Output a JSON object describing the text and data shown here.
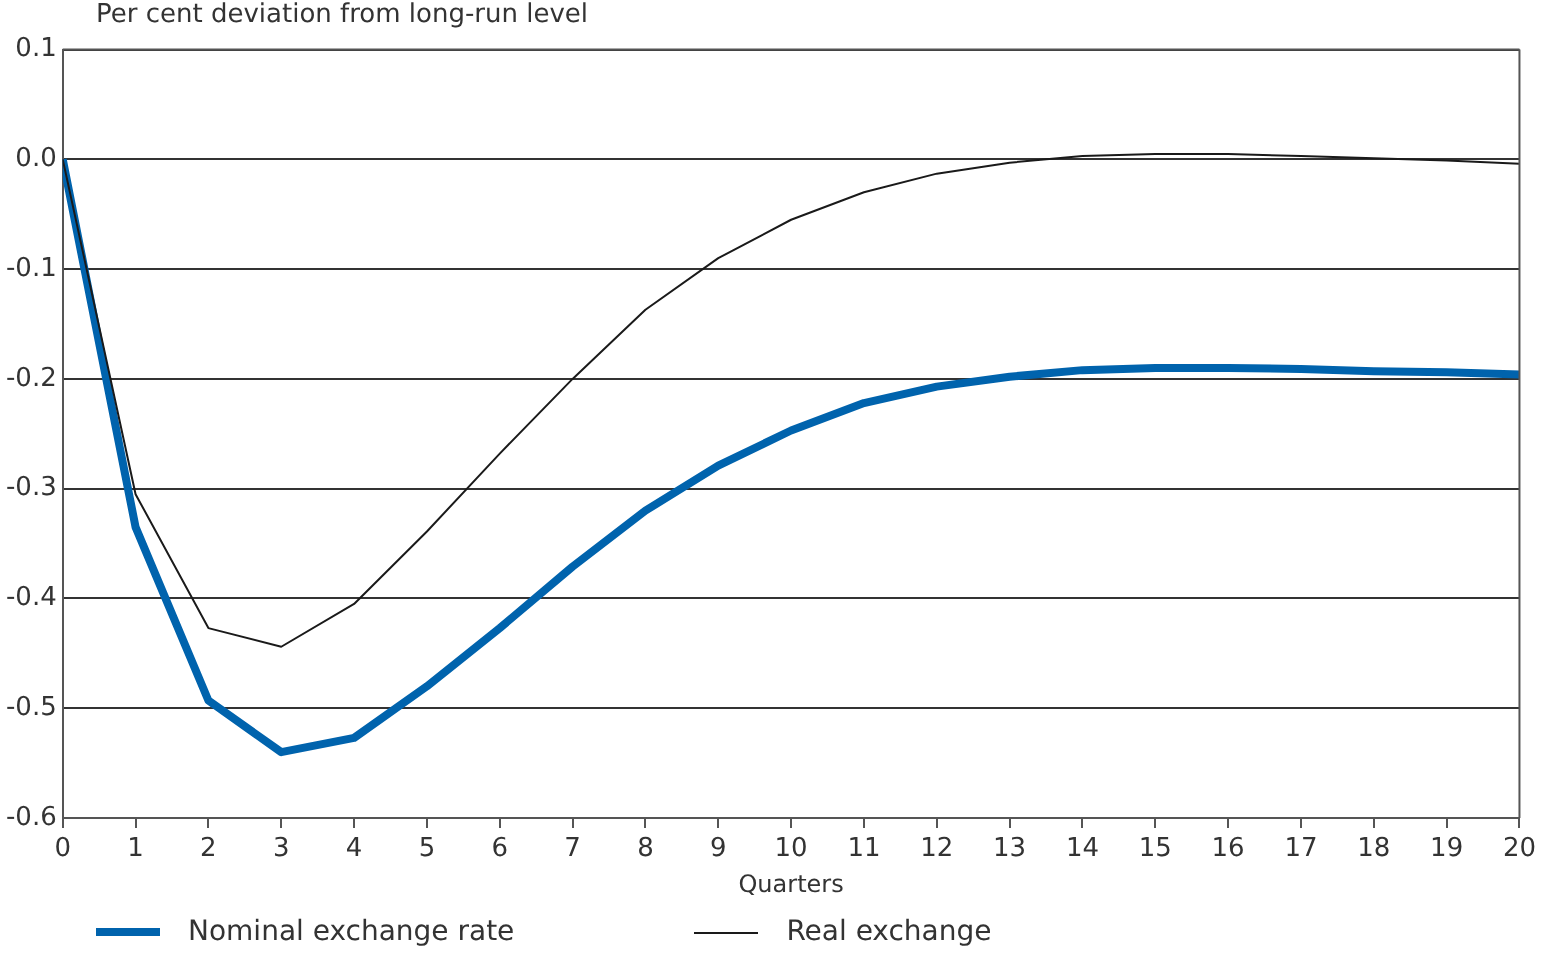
{
  "chart_data": {
    "type": "line",
    "subtitle": "Per cent deviation from long-run level",
    "xlabel": "Quarters",
    "x": [
      0,
      1,
      2,
      3,
      4,
      5,
      6,
      7,
      8,
      9,
      10,
      11,
      12,
      13,
      14,
      15,
      16,
      17,
      18,
      19,
      20
    ],
    "xlim": [
      0,
      20
    ],
    "xticks": [
      0,
      1,
      2,
      3,
      4,
      5,
      6,
      7,
      8,
      9,
      10,
      11,
      12,
      13,
      14,
      15,
      16,
      17,
      18,
      19,
      20
    ],
    "ylim": [
      -0.6,
      0.1
    ],
    "yticks": [
      {
        "value": -0.6,
        "label": "-0.6"
      },
      {
        "value": -0.5,
        "label": "-0.5"
      },
      {
        "value": -0.4,
        "label": "-0.4"
      },
      {
        "value": -0.3,
        "label": "-0.3"
      },
      {
        "value": -0.2,
        "label": "-0.2"
      },
      {
        "value": -0.1,
        "label": "-0.1"
      },
      {
        "value": 0,
        "label": "0.0"
      },
      {
        "value": 0.1,
        "label": "0.1"
      }
    ],
    "grid": "y",
    "legend": "bottom",
    "marker": "none",
    "series": [
      {
        "name": "Nominal exchange rate",
        "color": "#0063ad",
        "values": [
          0,
          -0.335,
          -0.493,
          -0.54,
          -0.527,
          -0.48,
          -0.427,
          -0.371,
          -0.32,
          -0.279,
          -0.247,
          -0.222,
          -0.207,
          -0.198,
          -0.192,
          -0.19,
          -0.19,
          -0.191,
          -0.193,
          -0.194,
          -0.196
        ]
      },
      {
        "name": "Real exchange",
        "color": "#1a1a1a",
        "values": [
          0,
          -0.305,
          -0.427,
          -0.444,
          -0.405,
          -0.339,
          -0.268,
          -0.2,
          -0.137,
          -0.09,
          -0.055,
          -0.03,
          -0.013,
          -0.003,
          0.003,
          0.005,
          0.005,
          0.003,
          0.001,
          -0.001,
          -0.004
        ]
      }
    ]
  }
}
